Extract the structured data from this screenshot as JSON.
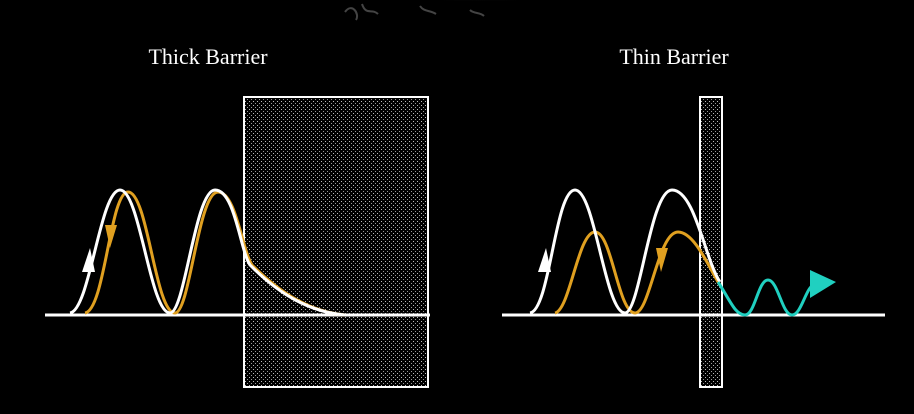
{
  "panels": [
    {
      "title": "Thick Barrier"
    },
    {
      "title": "Thin Barrier"
    }
  ]
}
